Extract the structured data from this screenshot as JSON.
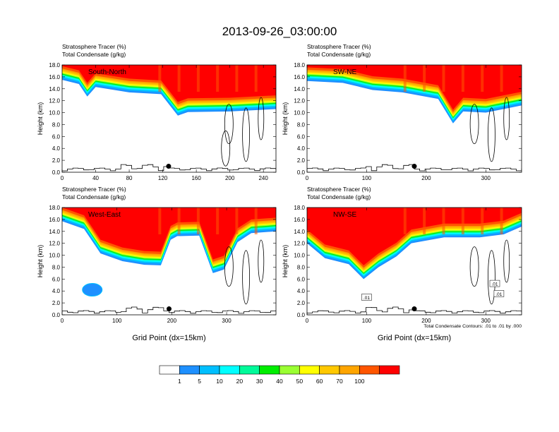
{
  "title": "2013-09-26_03:00:00",
  "colors": {
    "background": "#ffffff",
    "contour": "#000000",
    "marker": "#000000",
    "panel_label": "#ffffff"
  },
  "colorbar": {
    "labels": [
      "1",
      "5",
      "10",
      "20",
      "30",
      "40",
      "50",
      "60",
      "70",
      "100"
    ],
    "colors": [
      "#ffffff",
      "#1e90ff",
      "#00bfff",
      "#00ffff",
      "#00fa9a",
      "#00ee00",
      "#9aff32",
      "#ffff00",
      "#ffc800",
      "#ffa500",
      "#ff5500",
      "#ff0000"
    ]
  },
  "chart_data": [
    {
      "type": "contour",
      "panel_label": "South-North",
      "subtitle_line1": "Stratosphere Tracer   (%)",
      "subtitle_line2": "Total Condensate   (g/kg)",
      "ylabel": "Height (km)",
      "xlabel": "",
      "xticks": [
        "0",
        "40",
        "80",
        "120",
        "160",
        "200",
        "240"
      ],
      "xlim": [
        0,
        255
      ],
      "yticks": [
        "0.0",
        "2.0",
        "4.0",
        "6.0",
        "8.0",
        "10.0",
        "12.0",
        "14.0",
        "16.0",
        "18.0"
      ],
      "ylim": [
        0,
        18
      ],
      "tracer_interface_km": [
        [
          0,
          15.5
        ],
        [
          20,
          14.8
        ],
        [
          30,
          12.7
        ],
        [
          40,
          14.3
        ],
        [
          80,
          13.4
        ],
        [
          118,
          13.1
        ],
        [
          128,
          11.3
        ],
        [
          138,
          9.5
        ],
        [
          150,
          10.1
        ],
        [
          200,
          10.2
        ],
        [
          255,
          10.6
        ]
      ],
      "marker": {
        "x": 127,
        "y": 1.0
      },
      "contour_label": "",
      "footnote": ""
    },
    {
      "type": "contour",
      "panel_label": "SW-NE",
      "subtitle_line1": "Stratosphere Tracer   (%)",
      "subtitle_line2": "Total Condensate   (g/kg)",
      "ylabel": "Height (km)",
      "xlabel": "",
      "xticks": [
        "0",
        "100",
        "200",
        "300"
      ],
      "xlim": [
        0,
        360
      ],
      "yticks": [
        "0.0",
        "2.0",
        "4.0",
        "6.0",
        "8.0",
        "10.0",
        "12.0",
        "14.0",
        "16.0",
        "18.0"
      ],
      "ylim": [
        0,
        18
      ],
      "tracer_interface_km": [
        [
          0,
          15.3
        ],
        [
          60,
          15.0
        ],
        [
          110,
          13.8
        ],
        [
          160,
          13.4
        ],
        [
          220,
          12.3
        ],
        [
          245,
          8.2
        ],
        [
          262,
          10.2
        ],
        [
          300,
          10.0
        ],
        [
          360,
          11.2
        ]
      ],
      "marker": {
        "x": 180,
        "y": 1.0
      },
      "contour_label": "",
      "footnote": ""
    },
    {
      "type": "contour",
      "panel_label": "West-East",
      "subtitle_line1": "Stratosphere Tracer   (%)",
      "subtitle_line2": "Total Condensate   (g/kg)",
      "ylabel": "Height (km)",
      "xlabel": "Grid Point (dx=15km)",
      "xticks": [
        "0",
        "100",
        "200",
        "300"
      ],
      "xlim": [
        0,
        390
      ],
      "yticks": [
        "0.0",
        "2.0",
        "4.0",
        "6.0",
        "8.0",
        "10.0",
        "12.0",
        "14.0",
        "16.0",
        "18.0"
      ],
      "ylim": [
        0,
        18
      ],
      "tracer_interface_km": [
        [
          0,
          15.7
        ],
        [
          40,
          14.4
        ],
        [
          70,
          10.3
        ],
        [
          110,
          9.0
        ],
        [
          150,
          8.4
        ],
        [
          180,
          8.3
        ],
        [
          198,
          12.6
        ],
        [
          210,
          13.2
        ],
        [
          250,
          13.3
        ],
        [
          275,
          7.0
        ],
        [
          295,
          7.6
        ],
        [
          320,
          12.2
        ],
        [
          345,
          13.7
        ],
        [
          390,
          14.0
        ]
      ],
      "marker": {
        "x": 195,
        "y": 1.0
      },
      "contour_label": "",
      "footnote": ""
    },
    {
      "type": "contour",
      "panel_label": "NW-SE",
      "subtitle_line1": "Stratosphere Tracer   (%)",
      "subtitle_line2": "Total Condensate   (g/kg)",
      "ylabel": "Height (km)",
      "xlabel": "Grid Point (dx=15km)",
      "xticks": [
        "0",
        "100",
        "200",
        "300"
      ],
      "xlim": [
        0,
        360
      ],
      "yticks": [
        "0.0",
        "2.0",
        "4.0",
        "6.0",
        "8.0",
        "10.0",
        "12.0",
        "14.0",
        "16.0",
        "18.0"
      ],
      "ylim": [
        0,
        18
      ],
      "tracer_interface_km": [
        [
          0,
          12.0
        ],
        [
          30,
          9.5
        ],
        [
          70,
          8.5
        ],
        [
          95,
          6.0
        ],
        [
          120,
          8.0
        ],
        [
          150,
          9.8
        ],
        [
          175,
          12.0
        ],
        [
          230,
          13.0
        ],
        [
          290,
          13.0
        ],
        [
          330,
          13.5
        ],
        [
          360,
          14.8
        ]
      ],
      "marker": {
        "x": 180,
        "y": 1.0
      },
      "contour_label": ".01",
      "footnote": "Total Condensate Contours: .01 to .01 by .000"
    }
  ]
}
